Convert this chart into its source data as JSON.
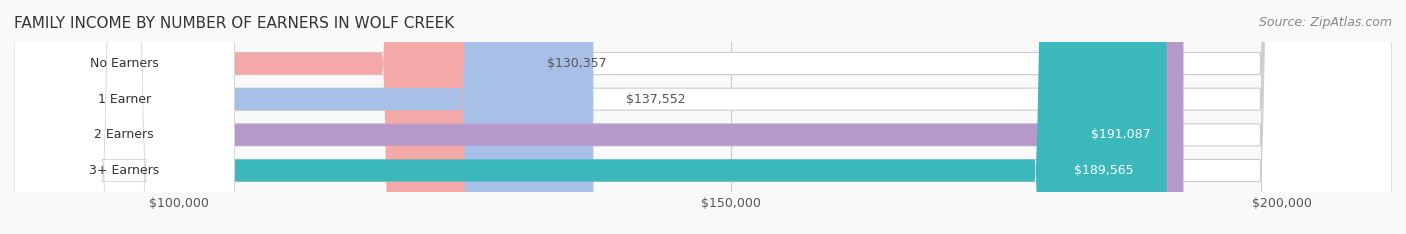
{
  "title": "FAMILY INCOME BY NUMBER OF EARNERS IN WOLF CREEK",
  "source": "Source: ZipAtlas.com",
  "categories": [
    "No Earners",
    "1 Earner",
    "2 Earners",
    "3+ Earners"
  ],
  "values": [
    130357,
    137552,
    191087,
    189565
  ],
  "labels": [
    "$130,357",
    "$137,552",
    "$191,087",
    "$189,565"
  ],
  "bar_colors": [
    "#f4a9a8",
    "#a8c0e8",
    "#b899cc",
    "#3ab8bc"
  ],
  "label_colors": [
    "#555555",
    "#555555",
    "#ffffff",
    "#ffffff"
  ],
  "bar_bg_color": "#efefef",
  "bar_border_color": "#cccccc",
  "xlim_min": 85000,
  "xlim_max": 210000,
  "xticks": [
    100000,
    150000,
    200000
  ],
  "xtick_labels": [
    "$100,000",
    "$150,000",
    "$200,000"
  ],
  "title_fontsize": 11,
  "source_fontsize": 9,
  "label_fontsize": 9,
  "tick_fontsize": 9,
  "bar_height": 0.62,
  "background_color": "#f9f9f9"
}
